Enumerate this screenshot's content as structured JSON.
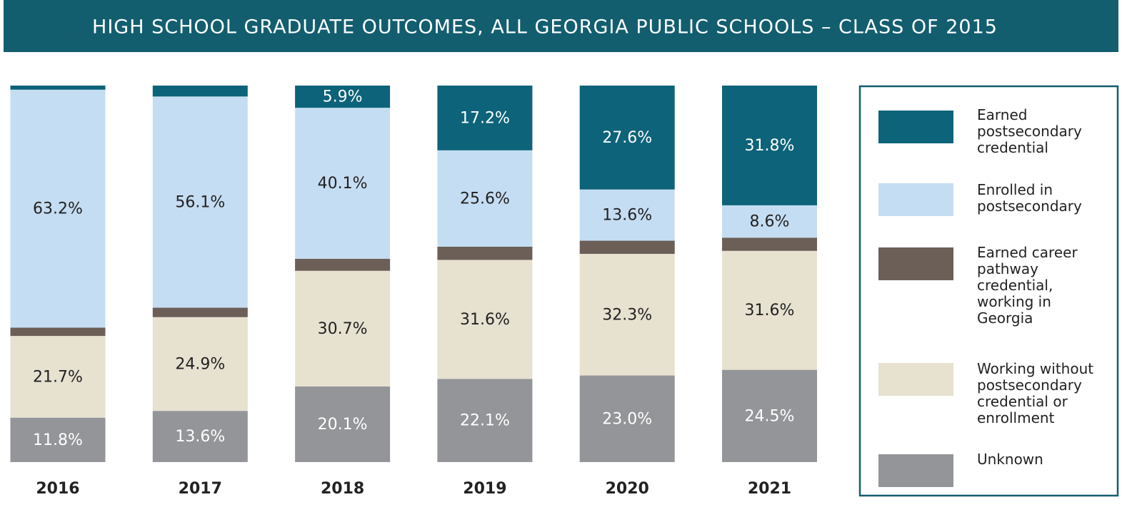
{
  "chart_data": {
    "type": "stacked_bar",
    "title": "HIGH SCHOOL GRADUATE OUTCOMES, ALL GEORGIA PUBLIC SCHOOLS – CLASS OF 2015",
    "categories": [
      "2016",
      "2017",
      "2018",
      "2019",
      "2020",
      "2021"
    ],
    "ylim": [
      0,
      100
    ],
    "series": [
      {
        "name": "Earned postsecondary credential",
        "color": "#0d6379",
        "values": [
          1.1,
          2.9,
          5.9,
          17.2,
          27.6,
          31.8
        ],
        "value_labels": [
          null,
          null,
          "5.9%",
          "17.2%",
          "27.6%",
          "31.8%"
        ]
      },
      {
        "name": "Enrolled in postsecondary",
        "color": "#c5ddf2",
        "values": [
          63.2,
          56.1,
          40.1,
          25.6,
          13.6,
          8.6
        ],
        "value_labels": [
          "63.2%",
          "56.1%",
          "40.1%",
          "25.6%",
          "13.6%",
          "8.6%"
        ]
      },
      {
        "name": "Earned career pathway credential, working in Georgia",
        "color": "#6b5f58",
        "values": [
          2.2,
          2.5,
          3.2,
          3.5,
          3.5,
          3.5
        ],
        "value_labels": [
          null,
          null,
          null,
          null,
          null,
          null
        ]
      },
      {
        "name": "Working without postsecondary credential or enrollment",
        "color": "#e7e1d0",
        "values": [
          21.7,
          24.9,
          30.7,
          31.6,
          32.3,
          31.6
        ],
        "value_labels": [
          "21.7%",
          "24.9%",
          "30.7%",
          "31.6%",
          "32.3%",
          "31.6%"
        ]
      },
      {
        "name": "Unknown",
        "color": "#939598",
        "values": [
          11.8,
          13.6,
          20.1,
          22.1,
          23.0,
          24.5
        ],
        "value_labels": [
          "11.8%",
          "13.6%",
          "20.1%",
          "22.1%",
          "23.0%",
          "24.5%"
        ]
      }
    ]
  }
}
